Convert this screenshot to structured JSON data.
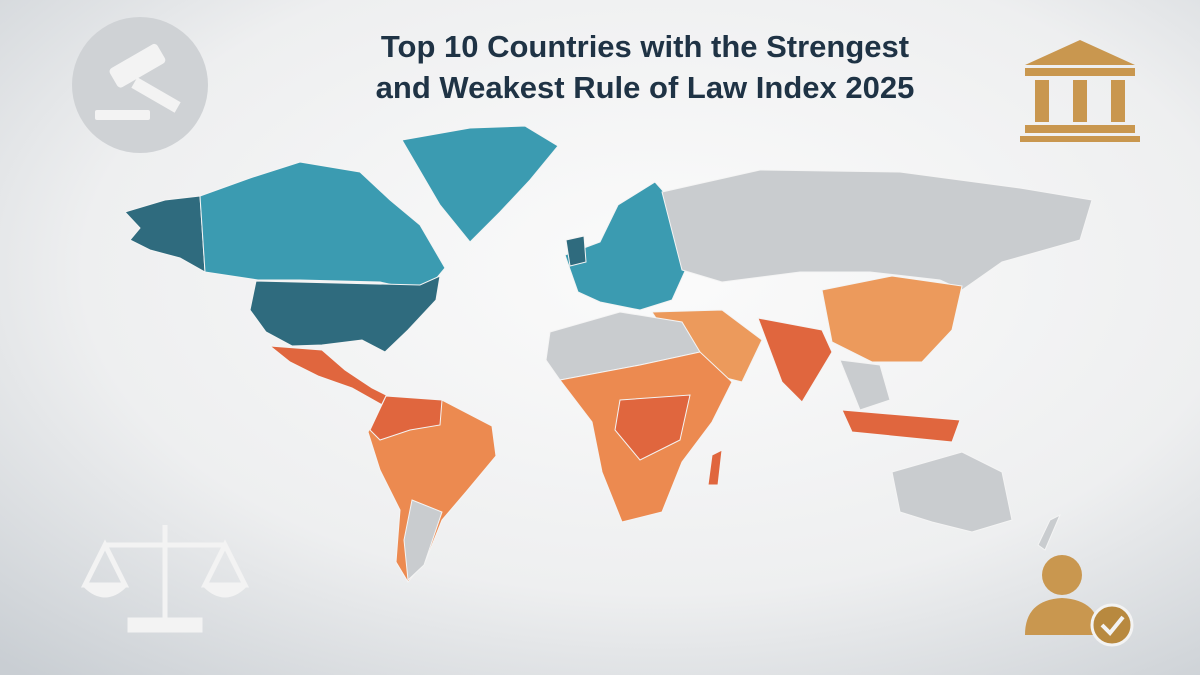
{
  "header": {
    "title_lines": [
      "Top 10 Countries with the Strengest",
      "and Weakest Rule of Law Index 2025"
    ]
  }
}
